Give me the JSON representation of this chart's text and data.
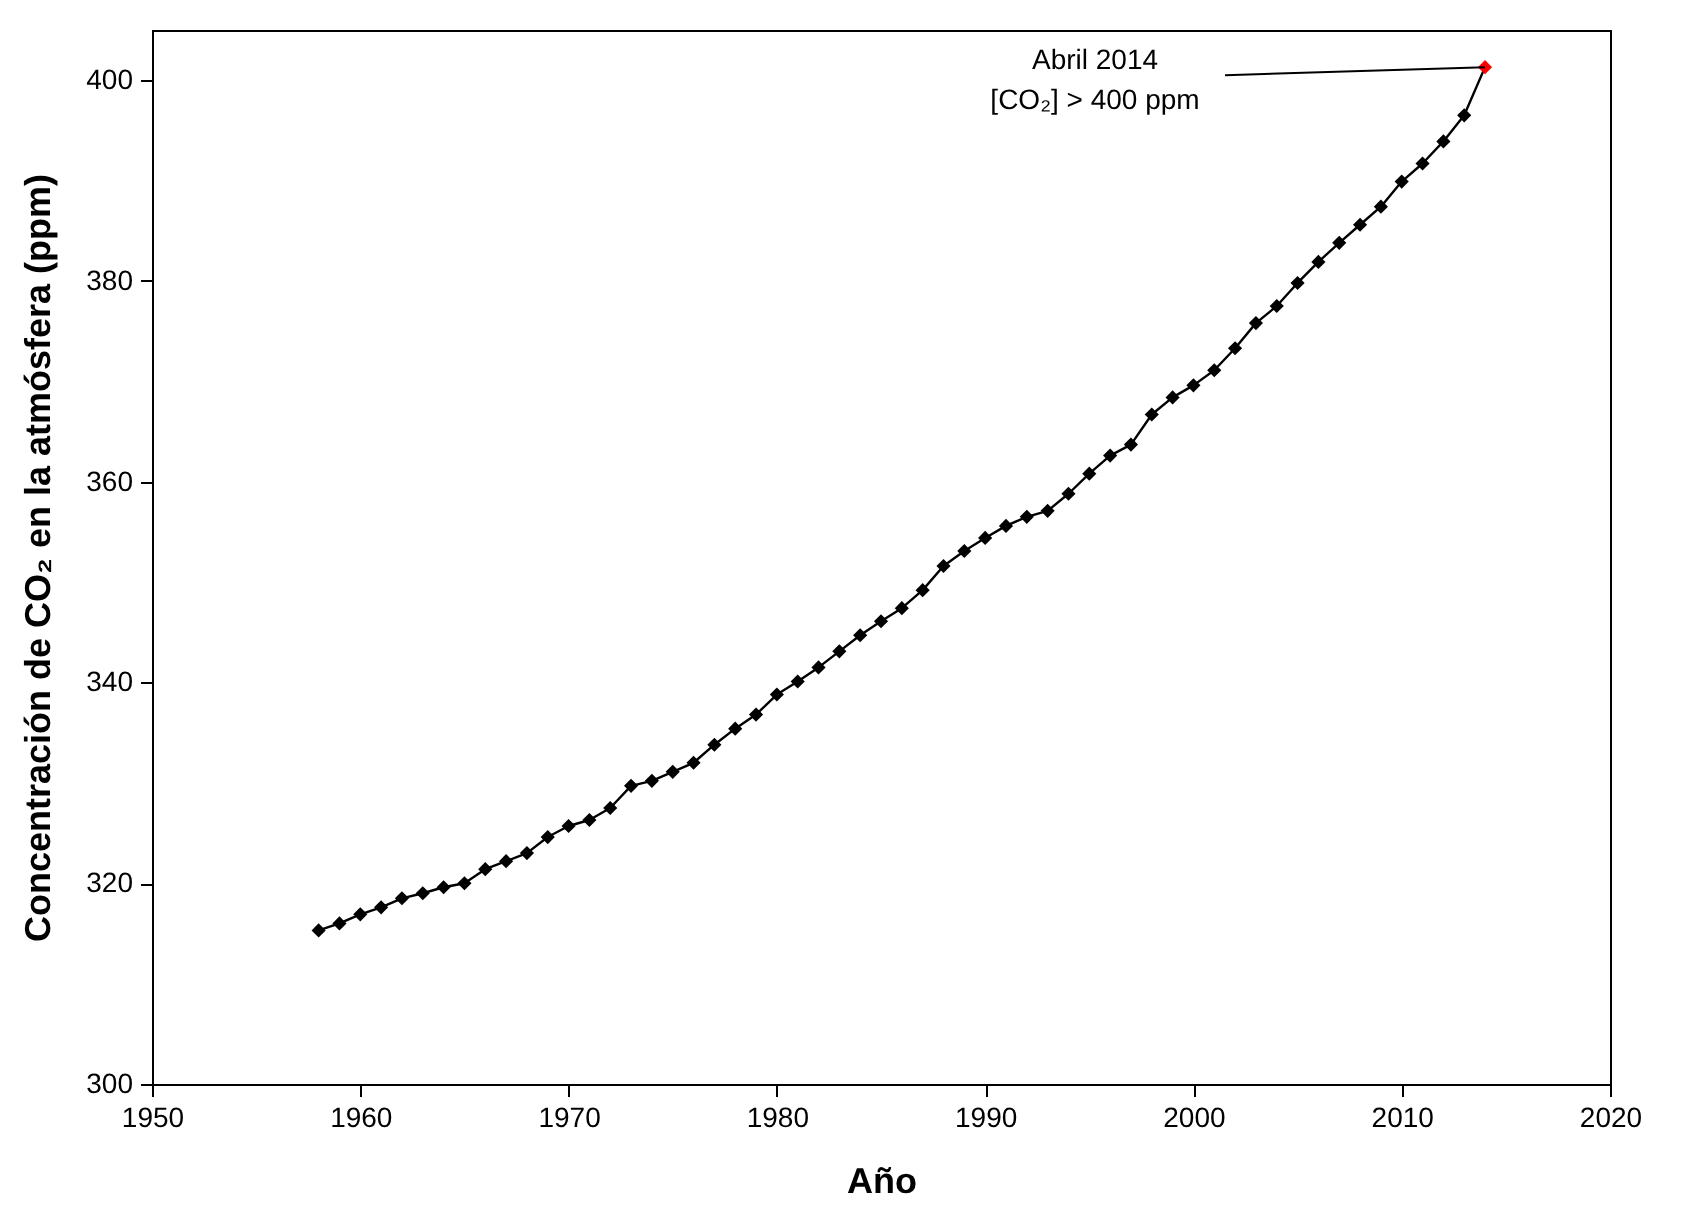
{
  "chart_data": {
    "type": "line",
    "xlabel": "Año",
    "ylabel": "Concentración de CO₂ en la atmósfera (ppm)",
    "x": [
      1958,
      1959,
      1960,
      1961,
      1962,
      1963,
      1964,
      1965,
      1966,
      1967,
      1968,
      1969,
      1970,
      1971,
      1972,
      1973,
      1974,
      1975,
      1976,
      1977,
      1978,
      1979,
      1980,
      1981,
      1982,
      1983,
      1984,
      1985,
      1986,
      1987,
      1988,
      1989,
      1990,
      1991,
      1992,
      1993,
      1994,
      1995,
      1996,
      1997,
      1998,
      1999,
      2000,
      2001,
      2002,
      2003,
      2004,
      2005,
      2006,
      2007,
      2008,
      2009,
      2010,
      2011,
      2012,
      2013,
      2014
    ],
    "series": [
      {
        "color": "#000000",
        "values": [
          315.3,
          316.0,
          316.9,
          317.6,
          318.5,
          319.0,
          319.6,
          320.0,
          321.4,
          322.2,
          323.0,
          324.6,
          325.7,
          326.3,
          327.5,
          329.7,
          330.2,
          331.1,
          332.0,
          333.8,
          335.4,
          336.8,
          338.8,
          340.1,
          341.5,
          343.1,
          344.7,
          346.1,
          347.4,
          349.2,
          351.6,
          353.1,
          354.4,
          355.6,
          356.5,
          357.1,
          358.8,
          360.8,
          362.6,
          363.7,
          366.7,
          368.4,
          369.6,
          371.1,
          373.3,
          375.8,
          377.5,
          379.8,
          381.9,
          383.8,
          385.6,
          387.4,
          389.9,
          391.7,
          393.9,
          396.5,
          401.3
        ],
        "colors": [
          "#000000",
          "#000000",
          "#000000",
          "#000000",
          "#000000",
          "#000000",
          "#000000",
          "#000000",
          "#000000",
          "#000000",
          "#000000",
          "#000000",
          "#000000",
          "#000000",
          "#000000",
          "#000000",
          "#000000",
          "#000000",
          "#000000",
          "#000000",
          "#000000",
          "#000000",
          "#000000",
          "#000000",
          "#000000",
          "#000000",
          "#000000",
          "#000000",
          "#000000",
          "#000000",
          "#000000",
          "#000000",
          "#000000",
          "#000000",
          "#000000",
          "#000000",
          "#000000",
          "#000000",
          "#000000",
          "#000000",
          "#000000",
          "#000000",
          "#000000",
          "#000000",
          "#000000",
          "#000000",
          "#000000",
          "#000000",
          "#000000",
          "#000000",
          "#000000",
          "#000000",
          "#000000",
          "#000000",
          "#000000",
          "#000000",
          "#ff0000"
        ]
      }
    ],
    "xlim": [
      1950,
      2020
    ],
    "xticks": [
      1950,
      1960,
      1970,
      1980,
      1990,
      2000,
      2010,
      2020
    ],
    "ylim": [
      300,
      405
    ],
    "yticks": [
      300,
      320,
      340,
      360,
      380,
      400
    ],
    "marker": "diamond",
    "line_style": "solid",
    "grid": false,
    "annotations": [
      {
        "text": "Abril 2014\n[CO₂] > 400 ppm",
        "x": 2014,
        "y": 401.3
      }
    ]
  }
}
